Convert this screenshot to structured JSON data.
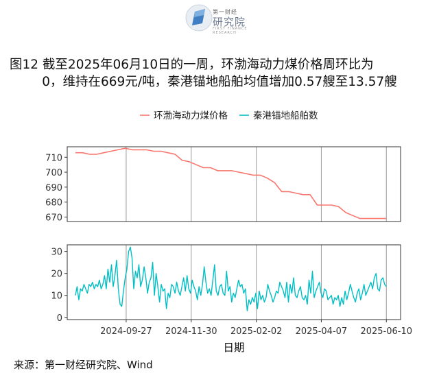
{
  "header": {
    "logo_small": "第一财经",
    "logo_main": "研究院",
    "logo_sub": "FIRST FINANCE RESEARCH"
  },
  "title_line1": "图12  截至2025年06月10日的一周，环渤海动力煤价格周环比为",
  "title_line2": "0，维持在669元/吨，秦港锚地船舶均值增加0.57艘至13.57艘",
  "source": "来源：第一财经研究院、Wind",
  "chart_data": {
    "type": "line",
    "title": "",
    "xlabel": "日期",
    "x_ticks": [
      "2024-09-27",
      "2024-11-30",
      "2025-02-02",
      "2025-04-07",
      "2025-06-10"
    ],
    "legend": {
      "placement": "top",
      "entries": [
        "环渤海动力煤价格",
        "秦港锚地船舶数"
      ]
    },
    "grid": true,
    "panels": [
      {
        "name": "环渤海动力煤价格",
        "color": "#f8766d",
        "ylim": [
          667,
          717
        ],
        "yticks": [
          670,
          680,
          690,
          700,
          710
        ],
        "x": [
          "2024-08-08",
          "2024-08-15",
          "2024-08-22",
          "2024-08-29",
          "2024-09-05",
          "2024-09-12",
          "2024-09-19",
          "2024-09-26",
          "2024-10-03",
          "2024-10-10",
          "2024-10-17",
          "2024-10-24",
          "2024-10-31",
          "2024-11-07",
          "2024-11-14",
          "2024-11-21",
          "2024-11-28",
          "2024-12-05",
          "2024-12-12",
          "2024-12-19",
          "2024-12-26",
          "2025-01-02",
          "2025-01-09",
          "2025-01-16",
          "2025-01-23",
          "2025-01-30",
          "2025-02-06",
          "2025-02-13",
          "2025-02-20",
          "2025-02-27",
          "2025-03-06",
          "2025-03-13",
          "2025-03-20",
          "2025-03-27",
          "2025-04-03",
          "2025-04-10",
          "2025-04-17",
          "2025-04-24",
          "2025-05-01",
          "2025-05-08",
          "2025-05-15",
          "2025-05-22",
          "2025-05-29",
          "2025-06-05",
          "2025-06-10"
        ],
        "values": [
          713,
          713,
          712,
          712,
          713,
          714,
          715,
          716,
          715,
          715,
          715,
          714,
          714,
          713,
          712,
          708,
          707,
          705,
          703,
          703,
          701,
          701,
          701,
          700,
          699,
          698,
          698,
          696,
          693,
          687,
          687,
          686,
          685,
          685,
          678,
          678,
          678,
          677,
          673,
          671,
          669,
          669,
          669,
          669,
          669
        ]
      },
      {
        "name": "秦港锚地船舶数",
        "color": "#00bfc4",
        "ylim": [
          -1,
          33
        ],
        "yticks": [
          0,
          10,
          20,
          30
        ],
        "x_start": "2024-08-08",
        "x_end": "2025-06-10",
        "values": [
          10,
          14,
          8,
          13,
          12,
          15,
          13,
          11,
          15,
          14,
          16,
          13,
          15,
          14,
          17,
          13,
          15,
          19,
          13,
          22,
          16,
          24,
          14,
          19,
          26,
          13,
          6,
          5,
          12,
          18,
          22,
          30,
          32,
          27,
          13,
          21,
          18,
          24,
          14,
          17,
          23,
          18,
          11,
          16,
          18,
          25,
          10,
          20,
          14,
          7,
          15,
          12,
          13,
          4,
          11,
          9,
          15,
          14,
          11,
          16,
          12,
          10,
          14,
          18,
          12,
          19,
          13,
          11,
          17,
          14,
          12,
          8,
          14,
          10,
          15,
          23,
          16,
          11,
          13,
          10,
          17,
          24,
          12,
          10,
          14,
          15,
          11,
          10,
          21,
          12,
          14,
          7,
          11,
          9,
          13,
          17,
          14,
          15,
          11,
          13,
          3,
          8,
          6,
          9,
          7,
          11,
          4,
          12,
          8,
          10,
          7,
          9,
          15,
          12,
          10,
          7,
          9,
          12,
          11,
          16,
          14,
          12,
          9,
          16,
          7,
          15,
          11,
          18,
          10,
          9,
          12,
          14,
          9,
          8,
          10,
          6,
          17,
          11,
          21,
          9,
          12,
          14,
          16,
          11,
          9,
          13,
          12,
          8,
          9,
          10,
          6,
          9,
          8,
          10,
          5,
          9,
          6,
          12,
          8,
          11,
          15,
          12,
          9,
          7,
          11,
          13,
          8,
          11,
          15,
          10,
          12,
          14,
          16,
          13,
          18,
          20,
          13,
          12,
          17,
          18,
          15,
          14
        ]
      }
    ]
  }
}
